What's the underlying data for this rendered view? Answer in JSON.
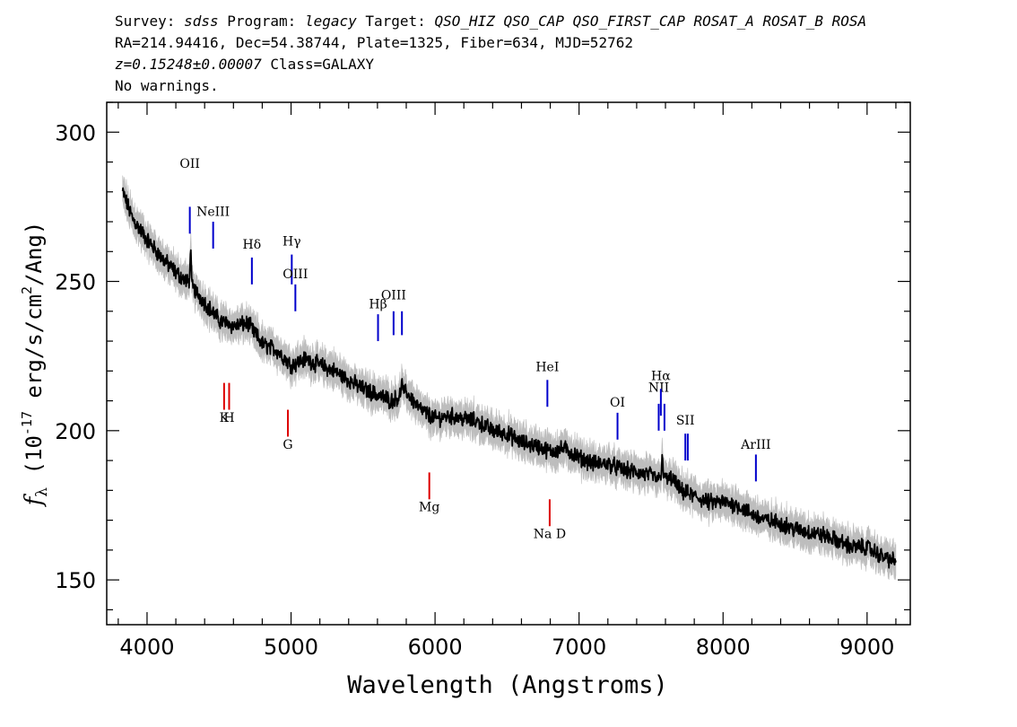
{
  "header": {
    "line1": {
      "survey_label": "Survey:",
      "survey": "sdss",
      "program_label": "Program:",
      "program": "legacy",
      "target_label": "Target:",
      "target": "QSO_HIZ QSO_CAP QSO_FIRST_CAP ROSAT_A ROSAT_B ROSA"
    },
    "line2": "RA=214.94416, Dec=54.38744, Plate=1325, Fiber=634, MJD=52762",
    "line3": {
      "z_text": "z=0.15248±0.00007",
      "class_text": "Class=GALAXY"
    },
    "line4": "No warnings."
  },
  "chart_data": {
    "type": "line",
    "xlabel": "Wavelength (Angstroms)",
    "ylabel": {
      "symbol": "f",
      "subscript": "λ",
      "text1": " (10",
      "exp1": "-17",
      "text2": " erg/s/cm",
      "exp2": "2",
      "text3": "/Ang)"
    },
    "xlim": [
      3720,
      9300
    ],
    "ylim": [
      135,
      310
    ],
    "x_ticks": [
      4000,
      5000,
      6000,
      7000,
      8000,
      9000
    ],
    "y_ticks": [
      150,
      200,
      250,
      300
    ],
    "grid": false,
    "colors": {
      "flux": "#000000",
      "error_band": "#bdbdbd",
      "emission": "#0000cc",
      "absorption": "#dd0000"
    },
    "series": [
      {
        "x": [
          3830,
          3900,
          4000,
          4100,
          4200,
          4300,
          4400,
          4500,
          4600,
          4700,
          4800,
          4900,
          5000,
          5100,
          5200,
          5300,
          5400,
          5500,
          5600,
          5700,
          5800,
          5900,
          6000,
          6100,
          6200,
          6300,
          6400,
          6500,
          6600,
          6700,
          6800,
          6900,
          7000,
          7100,
          7200,
          7300,
          7400,
          7500,
          7580,
          7650,
          7700,
          7800,
          7900,
          8000,
          8100,
          8200,
          8300,
          8400,
          8500,
          8600,
          8700,
          8800,
          8900,
          9000,
          9100,
          9200
        ],
        "y": [
          280,
          271,
          264,
          258,
          253,
          249,
          243,
          237,
          235,
          236,
          229,
          227,
          222,
          224,
          222,
          220,
          217,
          214,
          212,
          210,
          213,
          207,
          204,
          205,
          204,
          203,
          200,
          199,
          196,
          195,
          193,
          194,
          191,
          189,
          189,
          187,
          186,
          185,
          183,
          184,
          180,
          178,
          176,
          176,
          175,
          172,
          170,
          169,
          167,
          166,
          165,
          163,
          161,
          161,
          158,
          156
        ],
        "peaks": [
          {
            "x": 4303,
            "y": 262
          },
          {
            "x": 4555,
            "y": 233
          },
          {
            "x": 5770,
            "y": 218
          },
          {
            "x": 5785,
            "y": 211
          },
          {
            "x": 7560,
            "y": 185
          },
          {
            "x": 7578,
            "y": 193
          },
          {
            "x": 7600,
            "y": 186
          }
        ],
        "noise_amp": 2.2,
        "error_halfwidth": 4.5
      }
    ],
    "emission_lines": [
      {
        "label": "OII",
        "x": 4297,
        "y1": 266,
        "y2": 275,
        "label_y": 288
      },
      {
        "label": "NeIII",
        "x": 4459,
        "y1": 261,
        "y2": 270,
        "label_y": 272
      },
      {
        "label": "Hδ",
        "x": 4728,
        "y1": 249,
        "y2": 258,
        "label_y": 261
      },
      {
        "label": "Hγ",
        "x": 5005,
        "y1": 249,
        "y2": 259,
        "label_y": 262
      },
      {
        "label": "OIII",
        "x": 5030,
        "y1": 240,
        "y2": 249,
        "label_y": 251
      },
      {
        "label": "Hβ",
        "x": 5604,
        "y1": 230,
        "y2": 239,
        "label_y": 241
      },
      {
        "label": "OIII",
        "x": 5712,
        "y1": 232,
        "y2": 240,
        "label_y": 244
      },
      {
        "label": "OIII",
        "x": 5770,
        "y1": 232,
        "y2": 240,
        "label_y": 244
      },
      {
        "label": "HeI",
        "x": 6780,
        "y1": 208,
        "y2": 217,
        "label_y": 220
      },
      {
        "label": "OI",
        "x": 7267,
        "y1": 197,
        "y2": 206,
        "label_y": 208
      },
      {
        "label": "NII",
        "x": 7553,
        "y1": 200,
        "y2": 209,
        "label_y": 213
      },
      {
        "label": "Hα",
        "x": 7568,
        "y1": 205,
        "y2": 214,
        "label_y": 217
      },
      {
        "label": "NII",
        "x": 7593,
        "y1": 200,
        "y2": 209,
        "label_y": 213
      },
      {
        "label": "SII",
        "x": 7738,
        "y1": 190,
        "y2": 199,
        "label_y": 202
      },
      {
        "label": "SII",
        "x": 7755,
        "y1": 190,
        "y2": 199,
        "label_y": 202
      },
      {
        "label": "ArIII",
        "x": 8228,
        "y1": 183,
        "y2": 192,
        "label_y": 194
      }
    ],
    "absorption_lines": [
      {
        "label": "K",
        "x": 4535,
        "y1": 207,
        "y2": 216,
        "label_y": 203
      },
      {
        "label": "H",
        "x": 4570,
        "y1": 207,
        "y2": 216,
        "label_y": 203
      },
      {
        "label": "G",
        "x": 4978,
        "y1": 198,
        "y2": 207,
        "label_y": 194
      },
      {
        "label": "Mg",
        "x": 5960,
        "y1": 177,
        "y2": 186,
        "label_y": 173
      },
      {
        "label": "Na D",
        "x": 6796,
        "y1": 168,
        "y2": 177,
        "label_y": 164
      }
    ]
  }
}
